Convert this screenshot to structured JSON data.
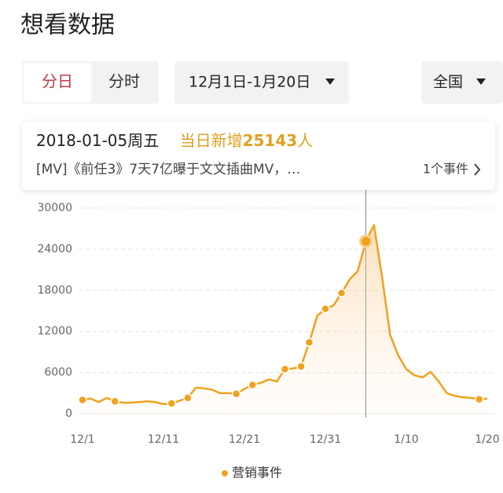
{
  "header": {
    "title": "想看数据"
  },
  "controls": {
    "tabs": [
      "分日",
      "分时"
    ],
    "date_range": "12月1日-1月20日",
    "region": "全国"
  },
  "tooltip": {
    "date": "2018-01-05周五",
    "count_prefix": "当日新增",
    "count": 25143,
    "count_unit": "人",
    "event": "[MV]《前任3》7天7亿曝于文文插曲MV，…",
    "event_count": "1个事件"
  },
  "chart_data": {
    "type": "line",
    "categories": [
      "12/1",
      null,
      null,
      null,
      null,
      null,
      null,
      null,
      null,
      null,
      "12/11",
      null,
      null,
      null,
      null,
      null,
      null,
      null,
      null,
      null,
      "12/21",
      null,
      null,
      null,
      null,
      null,
      null,
      null,
      null,
      null,
      "12/31",
      null,
      null,
      null,
      null,
      null,
      null,
      null,
      null,
      null,
      "1/10",
      null,
      null,
      null,
      null,
      null,
      null,
      null,
      null,
      null,
      "1/20"
    ],
    "values": [
      2000,
      2200,
      1700,
      2300,
      1800,
      1600,
      1600,
      1700,
      1800,
      1700,
      1400,
      1500,
      1900,
      2300,
      3800,
      3700,
      3500,
      3000,
      3000,
      2900,
      3600,
      4200,
      4500,
      5000,
      4700,
      6500,
      6600,
      6900,
      10400,
      14300,
      15300,
      15800,
      17600,
      19600,
      20800,
      25143,
      27500,
      20000,
      11500,
      8500,
      6500,
      5600,
      5300,
      6100,
      4700,
      3000,
      2600,
      2400,
      2300,
      2100,
      2200
    ],
    "color": "#f0a21e",
    "series": [
      {
        "name": "营销事件",
        "color": "#f0a21e",
        "values": [
          2000,
          null,
          null,
          null,
          1800,
          null,
          null,
          null,
          null,
          null,
          null,
          1500,
          null,
          2300,
          null,
          null,
          null,
          null,
          null,
          2900,
          null,
          4200,
          null,
          null,
          null,
          6500,
          null,
          6900,
          10400,
          null,
          15300,
          null,
          17600,
          null,
          null,
          25143,
          null,
          null,
          null,
          null,
          null,
          null,
          null,
          null,
          null,
          null,
          null,
          null,
          null,
          2100,
          null
        ]
      }
    ],
    "highlight_index": 35,
    "ylim": [
      0,
      30000
    ],
    "yticks": [
      0,
      6000,
      12000,
      18000,
      24000,
      30000
    ],
    "grid": true
  }
}
